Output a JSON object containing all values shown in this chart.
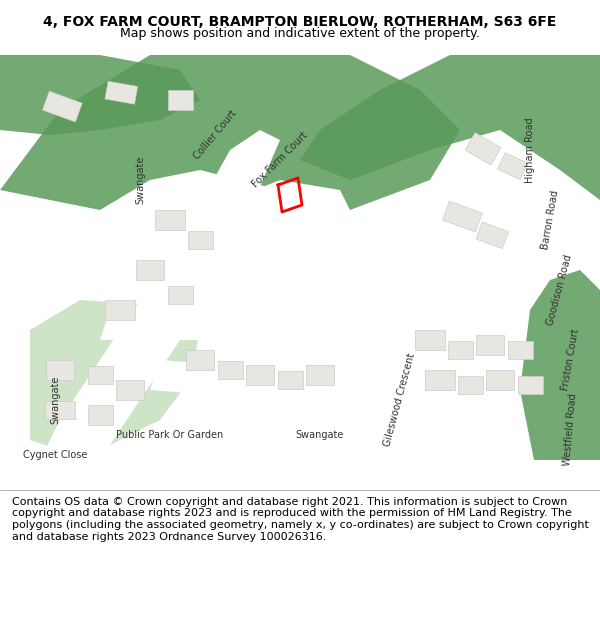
{
  "title_line1": "4, FOX FARM COURT, BRAMPTON BIERLOW, ROTHERHAM, S63 6FE",
  "title_line2": "Map shows position and indicative extent of the property.",
  "title_fontsize": 10,
  "subtitle_fontsize": 9,
  "copyright_text": "Contains OS data © Crown copyright and database right 2021. This information is subject to Crown copyright and database rights 2023 and is reproduced with the permission of HM Land Registry. The polygons (including the associated geometry, namely x, y co-ordinates) are subject to Crown copyright and database rights 2023 Ordnance Survey 100026316.",
  "copyright_fontsize": 8,
  "bg_color": "#f0eeeb",
  "map_bg": "#f0eeeb",
  "road_color": "#ffffff",
  "road_outline": "#cccccc",
  "green_color": "#5a9a5a",
  "light_green": "#b8d9b0",
  "building_color": "#e8e6e0",
  "building_outline": "#cccccc",
  "highlight_color": "#ff0000",
  "water_color": "#a8d4e8",
  "title_bg": "#ffffff",
  "footer_bg": "#ffffff"
}
